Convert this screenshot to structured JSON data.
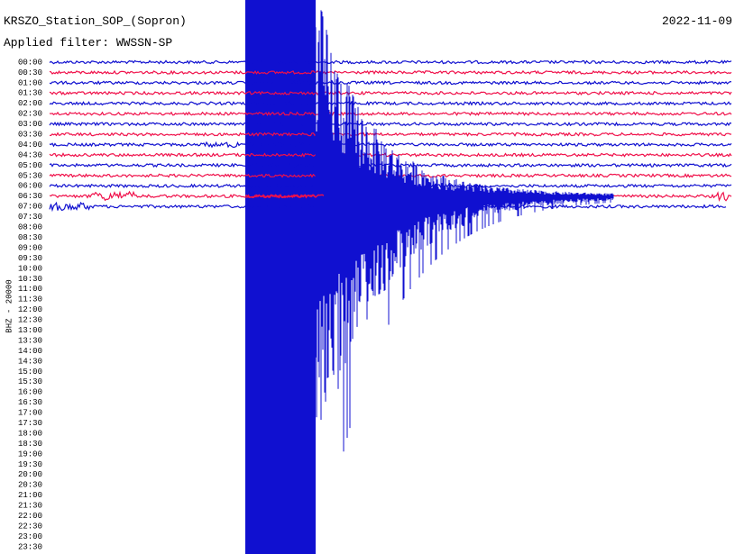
{
  "header": {
    "station": "KRSZO_Station_SOP_(Sopron)",
    "date": "2022-11-09",
    "filter": "Applied filter: WWSSN-SP"
  },
  "axis_label": "BHZ - 20000",
  "rows": [
    "00:00",
    "00:30",
    "01:00",
    "01:30",
    "02:00",
    "02:30",
    "03:00",
    "03:30",
    "04:00",
    "04:30",
    "05:00",
    "05:30",
    "06:00",
    "06:30",
    "07:00",
    "07:30",
    "08:00",
    "08:30",
    "09:00",
    "09:30",
    "10:00",
    "10:30",
    "11:00",
    "11:30",
    "12:00",
    "12:30",
    "13:00",
    "13:30",
    "14:00",
    "14:30",
    "15:00",
    "15:30",
    "16:00",
    "16:30",
    "17:00",
    "17:30",
    "18:00",
    "18:30",
    "19:00",
    "19:30",
    "20:00",
    "20:30",
    "21:00",
    "21:30",
    "22:00",
    "22:30",
    "23:00",
    "23:30"
  ]
}
